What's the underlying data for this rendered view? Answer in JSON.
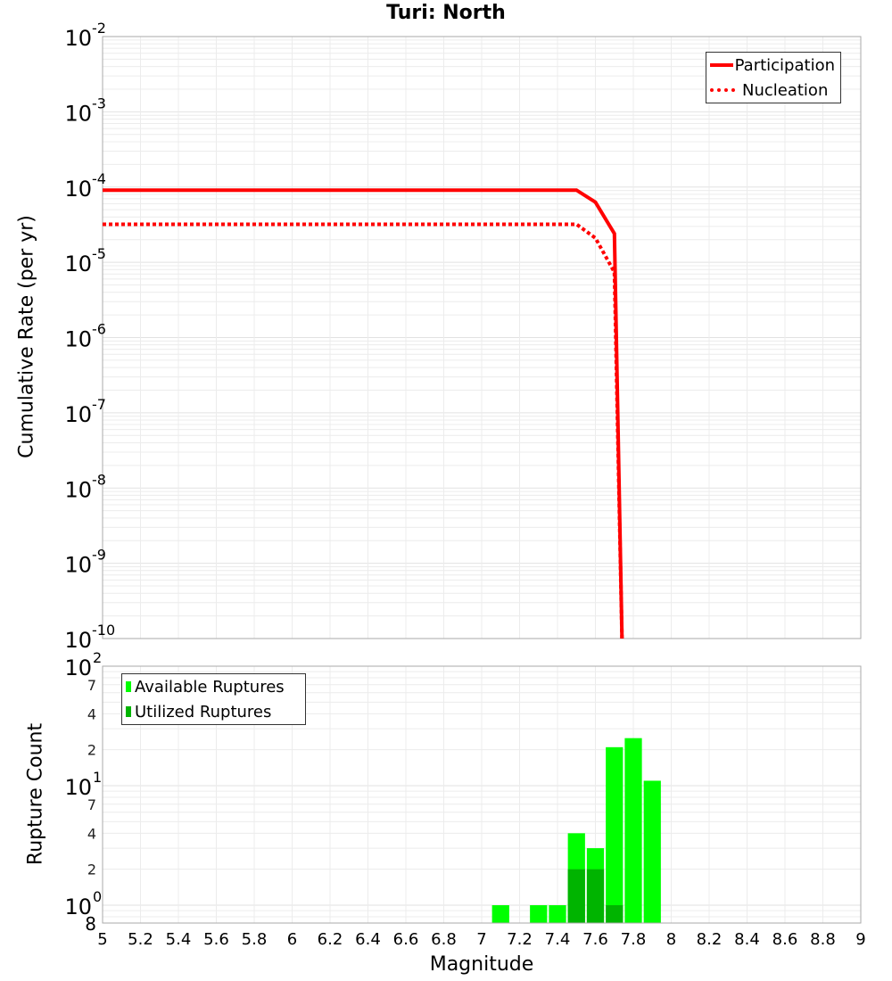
{
  "chart_data": [
    {
      "type": "line",
      "title": "Turi: North",
      "xlabel": "",
      "ylabel": "Cumulative Rate (per yr)",
      "xlim": [
        5,
        9
      ],
      "ylim": [
        1e-10,
        0.01
      ],
      "yscale": "log",
      "grid": true,
      "legend_position": "upper right",
      "ytick_labels": [
        "10^-2",
        "10^-3",
        "10^-4",
        "10^-5",
        "10^-6",
        "10^-7",
        "10^-8",
        "10^-9",
        "10^-10"
      ],
      "series": [
        {
          "name": "Participation",
          "style": "solid",
          "color": "#ff0000",
          "x": [
            5.0,
            7.5,
            7.6,
            7.7,
            7.74
          ],
          "y": [
            9.1e-05,
            9.1e-05,
            6.3e-05,
            2.4e-05,
            1e-10
          ]
        },
        {
          "name": "Nucleation",
          "style": "dotted",
          "color": "#ff0000",
          "x": [
            5.0,
            7.5,
            7.6,
            7.7,
            7.74
          ],
          "y": [
            3.2e-05,
            3.2e-05,
            2.1e-05,
            7.4e-06,
            1e-10
          ]
        }
      ]
    },
    {
      "type": "bar",
      "title": "",
      "xlabel": "Magnitude",
      "ylabel": "Rupture Count",
      "xlim": [
        5,
        9
      ],
      "ylim": [
        0.8,
        100
      ],
      "yscale": "log",
      "grid": true,
      "legend_position": "upper left",
      "xtick_labels": [
        "5",
        "5.2",
        "5.4",
        "5.6",
        "5.8",
        "6",
        "6.2",
        "6.4",
        "6.6",
        "6.8",
        "7",
        "7.2",
        "7.4",
        "7.6",
        "7.8",
        "8",
        "8.2",
        "8.4",
        "8.6",
        "8.8",
        "9"
      ],
      "ytick_labels": [
        "8",
        "10^0",
        "2",
        "4",
        "7",
        "10^1",
        "2",
        "4",
        "7",
        "10^2"
      ],
      "categories": [
        7.1,
        7.3,
        7.4,
        7.5,
        7.6,
        7.7,
        7.8,
        7.9
      ],
      "series": [
        {
          "name": "Available Ruptures",
          "color": "#00ff00",
          "values": [
            1,
            1,
            1,
            4,
            3,
            21,
            25,
            11
          ]
        },
        {
          "name": "Utilized Ruptures",
          "color": "#00b400",
          "values": [
            0,
            0,
            0,
            2,
            2,
            1,
            0,
            0
          ]
        }
      ]
    }
  ],
  "labels": {
    "title": "Turi: North",
    "top_ylabel": "Cumulative Rate (per yr)",
    "bottom_ylabel": "Rupture Count",
    "xlabel": "Magnitude",
    "legend_top": [
      "Participation",
      "Nucleation"
    ],
    "legend_bottom": [
      "Available Ruptures",
      "Utilized Ruptures"
    ]
  }
}
